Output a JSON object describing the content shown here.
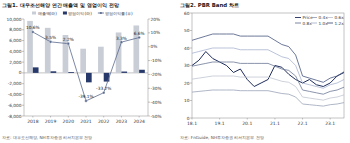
{
  "chart_data": [
    {
      "type": "bar",
      "title": "그림1. 대우조선해양 연간 매출액 및 영업이익 전망",
      "source": "자료: 대우조선해양, NH투자증권 리서치본부 전망",
      "categories": [
        "2018",
        "2019",
        "2020",
        "2021",
        "2022",
        "2023",
        "2024"
      ],
      "series": [
        {
          "name": "매출액(좌)",
          "type": "bar",
          "color": "#c9cdd6",
          "values": [
            9644,
            8359,
            7030,
            4487,
            4860,
            7500,
            8800
          ]
        },
        {
          "name": "영업이익(좌)",
          "type": "bar",
          "color": "#27386b",
          "values": [
            1025,
            293,
            153,
            -1755,
            -1614,
            250,
            580
          ]
        },
        {
          "name": "영업이익률(우)",
          "type": "line",
          "axis": "y2",
          "color": "#5a6a8e",
          "marker": "circle",
          "values": [
            10.6,
            3.5,
            2.2,
            -39.1,
            -33.2,
            3.3,
            6.6
          ],
          "value_labels": [
            "10.6%",
            "3.5%",
            "2.2%",
            "-39.1%",
            "-33.2%",
            "3.3%",
            "6.6%"
          ]
        }
      ],
      "ylim": [
        -8000,
        10000
      ],
      "yticks": [
        {
          "value": -8000,
          "label": "-8,000"
        },
        {
          "value": -6000,
          "label": "-6,000"
        },
        {
          "value": -4000,
          "label": "-4,000"
        },
        {
          "value": -2000,
          "label": "-2,000"
        },
        0,
        {
          "value": 2000,
          "label": "2,000"
        },
        {
          "value": 4000,
          "label": "4,000"
        },
        {
          "value": 6000,
          "label": "6,000"
        },
        {
          "value": 8000,
          "label": "8,000"
        },
        {
          "value": 10000,
          "label": "10,000"
        }
      ],
      "y2lim": [
        -50,
        20
      ],
      "y2ticks": [
        {
          "value": -50,
          "label": "-50%"
        },
        {
          "value": -40,
          "label": "-40%"
        },
        {
          "value": -30,
          "label": "-30%"
        },
        {
          "value": -20,
          "label": "-20%"
        },
        {
          "value": -10,
          "label": "-10%"
        },
        {
          "value": 0,
          "label": "0%"
        },
        {
          "value": 10,
          "label": "10%"
        },
        {
          "value": 20,
          "label": "20%"
        }
      ],
      "legend": "top",
      "grid": false,
      "data_labels": true
    },
    {
      "type": "line",
      "title": "그림2. PBR Band 차트",
      "source": "자료: FnGuide, NH투자증권 리서치본부 전망",
      "categories": [
        "18.1",
        null,
        null,
        null,
        "19.1",
        null,
        null,
        null,
        "20.1",
        null,
        null,
        null,
        "21.1",
        null,
        null,
        null,
        "22.1",
        null,
        null,
        null,
        "23.1",
        null,
        null
      ],
      "series": [
        {
          "name": "Price",
          "color": "#1f2d5c",
          "values": [
            30,
            33,
            38,
            34,
            32,
            30,
            26,
            28,
            22,
            18,
            20,
            22,
            30,
            29,
            25,
            22,
            20,
            22,
            19,
            18,
            20,
            24,
            26
          ]
        },
        {
          "name": "0.4x",
          "color": "#9aa3b8",
          "values": [
            14.8,
            15.2,
            15.6,
            16,
            16,
            16,
            16,
            15.6,
            15.6,
            15.6,
            15.6,
            15.6,
            14.8,
            14,
            13.6,
            12,
            8,
            7.6,
            7.2,
            6.8,
            7.6,
            8,
            8.8
          ]
        },
        {
          "name": "0.6x",
          "color": "#c0c5d0",
          "values": [
            22.2,
            22.8,
            23.4,
            24,
            24,
            24,
            24,
            23.4,
            23.4,
            23.4,
            23.4,
            23.4,
            22.2,
            21,
            20.4,
            18,
            12,
            11.4,
            10.8,
            10.2,
            11.4,
            12,
            13.2
          ]
        },
        {
          "name": "0.8x",
          "color": "#6c7896",
          "values": [
            29.6,
            30.4,
            31.2,
            32,
            32,
            32,
            32,
            31.2,
            31.2,
            31.2,
            31.2,
            31.2,
            29.6,
            28,
            27.2,
            24,
            16,
            15.2,
            14.4,
            13.6,
            15.2,
            16,
            17.6
          ]
        },
        {
          "name": "1.0x",
          "color": "#a8b4cf",
          "values": [
            37,
            38,
            39,
            40,
            40,
            40,
            40,
            39,
            39,
            39,
            39,
            39,
            37,
            35,
            34,
            30,
            20,
            19,
            18,
            17,
            19,
            20,
            22
          ]
        },
        {
          "name": "1.2x",
          "color": "#48577f",
          "values": [
            44.4,
            45.6,
            46.8,
            48,
            48,
            48,
            48,
            46.8,
            46.8,
            46.8,
            46.8,
            46.8,
            44.4,
            42,
            40.8,
            36,
            24,
            22.8,
            21.6,
            20.4,
            22.8,
            24,
            26.4
          ]
        }
      ],
      "ylim": [
        0,
        60
      ],
      "yticks": [
        0,
        10,
        20,
        30,
        40,
        50,
        60
      ],
      "legend": "upper right",
      "grid": false
    }
  ]
}
